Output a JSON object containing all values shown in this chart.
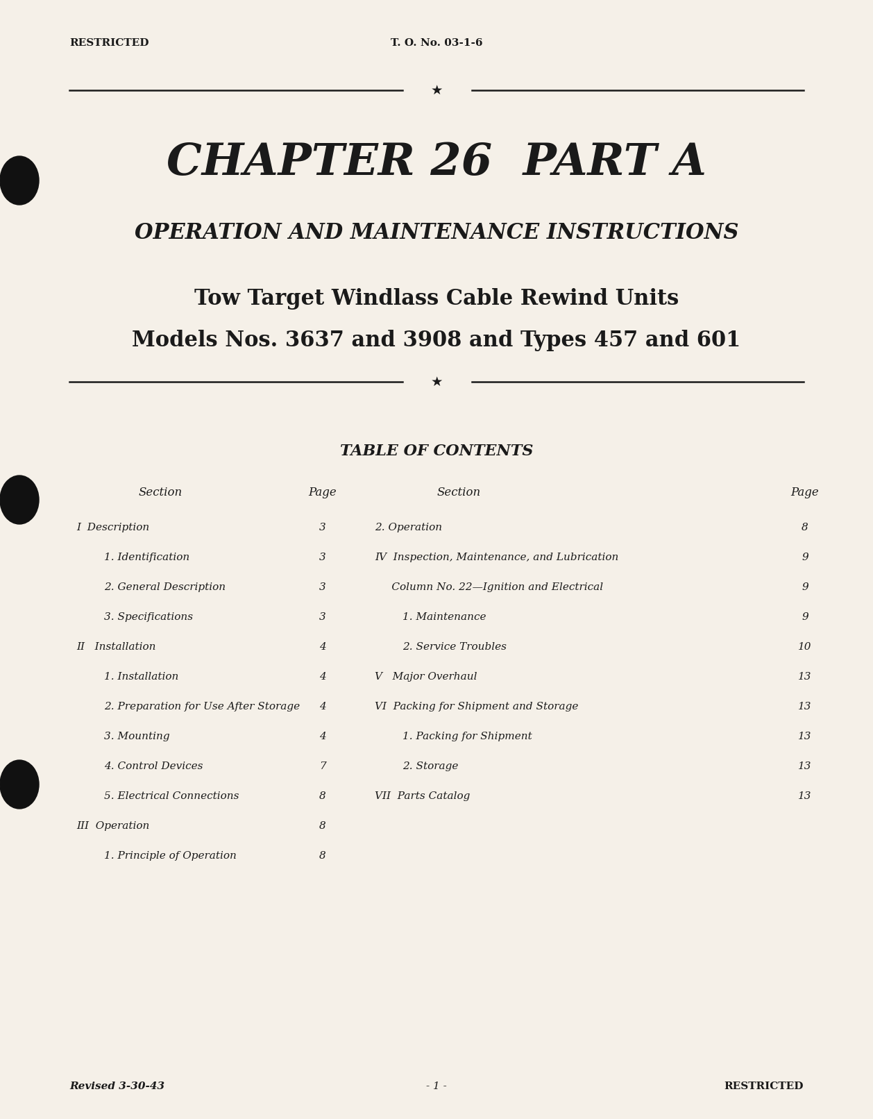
{
  "bg_color": "#f5f0e8",
  "text_color": "#1a1a1a",
  "header_left": "RESTRICTED",
  "header_center": "T. O. No. 03-1-6",
  "chapter_title": "CHAPTER 26  PART A",
  "subtitle1": "OPERATION AND MAINTENANCE INSTRUCTIONS",
  "subtitle2": "Tow Target Windlass Cable Rewind Units",
  "subtitle3": "Models Nos. 3637 and 3908 and Types 457 and 601",
  "toc_title": "TABLE OF CONTENTS",
  "section_header_left": "Section",
  "page_header_left": "Page",
  "section_header_right": "Section",
  "page_header_right": "Page",
  "left_entries": [
    [
      "I  Description",
      "3"
    ],
    [
      "1. Identification",
      "3"
    ],
    [
      "2. General Description",
      "3"
    ],
    [
      "3. Specifications",
      "3"
    ],
    [
      "II   Installation",
      "4"
    ],
    [
      "1. Installation",
      "4"
    ],
    [
      "2. Preparation for Use After Storage",
      "4"
    ],
    [
      "3. Mounting",
      "4"
    ],
    [
      "4. Control Devices",
      "7"
    ],
    [
      "5. Electrical Connections",
      "8"
    ],
    [
      "III  Operation",
      "8"
    ],
    [
      "1. Principle of Operation",
      "8"
    ]
  ],
  "right_entries": [
    [
      "2. Operation",
      "8"
    ],
    [
      "IV  Inspection, Maintenance, and Lubrication",
      "9"
    ],
    [
      "     Column No. 22—Ignition and Electrical",
      "9"
    ],
    [
      "1. Maintenance",
      "9"
    ],
    [
      "2. Service Troubles",
      "10"
    ],
    [
      "V   Major Overhaul",
      "13"
    ],
    [
      "VI  Packing for Shipment and Storage",
      "13"
    ],
    [
      "1. Packing for Shipment",
      "13"
    ],
    [
      "2. Storage",
      "13"
    ],
    [
      "VII  Parts Catalog",
      "13"
    ]
  ],
  "footer_left": "Revised 3-30-43",
  "footer_center": "- 1 -",
  "footer_right": "RESTRICTED"
}
